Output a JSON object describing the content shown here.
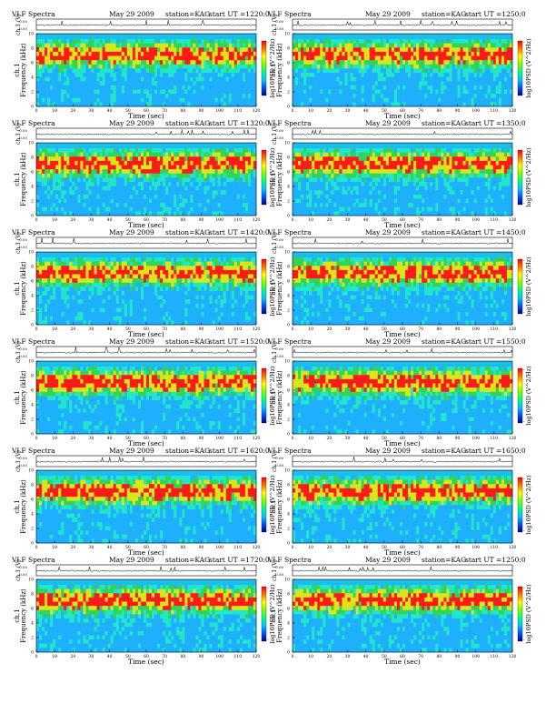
{
  "page": {
    "header_left": "VLF Spectra",
    "date": "May 29 2009",
    "station": "station=KAG",
    "start_label": "start  UT =",
    "top_axis_label": "ch.1 (V)",
    "top_axis_ticks": [
      "0.00",
      "0.50"
    ],
    "spectrogram_ylabel_line1": "ch.1",
    "spectrogram_ylabel_line2": "Frequency (kHz)",
    "xlabel": "Time (sec)",
    "colorbar_label": "log10PSD (V^2/Hz)",
    "colorbar_ticks": [
      "-",
      "-"
    ]
  },
  "chart_data": [
    {
      "type": "heatmap",
      "start_ut": "1220:0",
      "x_ticks": [
        0,
        10,
        20,
        30,
        40,
        50,
        60,
        70,
        80,
        90,
        100,
        110,
        120
      ],
      "xlim": [
        0,
        120
      ],
      "y_ticks": [
        0,
        2,
        4,
        6,
        8,
        10
      ],
      "ylim": [
        0,
        10
      ]
    },
    {
      "type": "heatmap",
      "start_ut": "1250:0",
      "x_ticks": [
        0,
        10,
        20,
        30,
        40,
        50,
        60,
        70,
        80,
        90,
        100,
        110,
        120
      ],
      "xlim": [
        0,
        120
      ],
      "y_ticks": [
        0,
        2,
        4,
        6,
        8,
        10
      ],
      "ylim": [
        0,
        10
      ]
    },
    {
      "type": "heatmap",
      "start_ut": "1320:0",
      "x_ticks": [
        0,
        10,
        20,
        30,
        40,
        50,
        60,
        70,
        80,
        90,
        100,
        110,
        120
      ],
      "xlim": [
        0,
        120
      ],
      "y_ticks": [
        0,
        2,
        4,
        6,
        8,
        10
      ],
      "ylim": [
        0,
        10
      ]
    },
    {
      "type": "heatmap",
      "start_ut": "1350:0",
      "x_ticks": [
        0,
        10,
        20,
        30,
        40,
        50,
        60,
        70,
        80,
        90,
        100,
        110,
        120
      ],
      "xlim": [
        0,
        120
      ],
      "y_ticks": [
        0,
        2,
        4,
        6,
        8,
        10
      ],
      "ylim": [
        0,
        10
      ]
    },
    {
      "type": "heatmap",
      "start_ut": "1420:0",
      "x_ticks": [
        0,
        10,
        20,
        30,
        40,
        50,
        60,
        70,
        80,
        90,
        100,
        110,
        120
      ],
      "xlim": [
        0,
        120
      ],
      "y_ticks": [
        0,
        2,
        4,
        6,
        8,
        10
      ],
      "ylim": [
        0,
        10
      ]
    },
    {
      "type": "heatmap",
      "start_ut": "1450:0",
      "x_ticks": [
        0,
        10,
        20,
        30,
        40,
        50,
        60,
        70,
        80,
        90,
        100,
        110,
        120
      ],
      "xlim": [
        0,
        120
      ],
      "y_ticks": [
        0,
        2,
        4,
        6,
        8,
        10
      ],
      "ylim": [
        0,
        10
      ]
    },
    {
      "type": "heatmap",
      "start_ut": "1520:0",
      "x_ticks": [
        0,
        10,
        20,
        30,
        40,
        50,
        60,
        70,
        80,
        90,
        100,
        110,
        120
      ],
      "xlim": [
        0,
        120
      ],
      "y_ticks": [
        0,
        2,
        4,
        6,
        8,
        10
      ],
      "ylim": [
        0,
        10
      ]
    },
    {
      "type": "heatmap",
      "start_ut": "1550:0",
      "x_ticks": [
        0,
        10,
        20,
        30,
        40,
        50,
        60,
        70,
        80,
        90,
        100,
        110,
        120
      ],
      "xlim": [
        0,
        120
      ],
      "y_ticks": [
        0,
        2,
        4,
        6,
        8,
        10
      ],
      "ylim": [
        0,
        10
      ]
    },
    {
      "type": "heatmap",
      "start_ut": "1620:0",
      "x_ticks": [
        0,
        10,
        20,
        30,
        40,
        50,
        60,
        70,
        80,
        90,
        100,
        110,
        120
      ],
      "xlim": [
        0,
        120
      ],
      "y_ticks": [
        0,
        2,
        4,
        6,
        8,
        10
      ],
      "ylim": [
        0,
        10
      ]
    },
    {
      "type": "heatmap",
      "start_ut": "1650:0",
      "x_ticks": [
        0,
        10,
        20,
        30,
        40,
        50,
        60,
        70,
        80,
        90,
        100,
        110,
        120
      ],
      "xlim": [
        0,
        120
      ],
      "y_ticks": [
        0,
        2,
        4,
        6,
        8,
        10
      ],
      "ylim": [
        0,
        10
      ]
    },
    {
      "type": "heatmap",
      "start_ut": "1720:0",
      "x_ticks": [
        0,
        10,
        20,
        30,
        40,
        50,
        60,
        70,
        80,
        90,
        100,
        110,
        120
      ],
      "xlim": [
        0,
        120
      ],
      "y_ticks": [
        0,
        2,
        4,
        6,
        8,
        10
      ],
      "ylim": [
        0,
        10
      ]
    },
    {
      "type": "heatmap",
      "start_ut": "1250:0",
      "x_ticks": [
        0,
        10,
        20,
        30,
        40,
        50,
        60,
        70,
        80,
        90,
        100,
        110,
        120
      ],
      "xlim": [
        0,
        120
      ],
      "y_ticks": [
        0,
        2,
        4,
        6,
        8,
        10
      ],
      "ylim": [
        0,
        10
      ]
    }
  ],
  "colors": {
    "low": "#1fb0ff",
    "mid_low": "#22e6c8",
    "mid": "#33d455",
    "mid_high": "#d8e61a",
    "high": "#ff1a1a",
    "cap": "#19bdf2",
    "colorbar": [
      "#ff0000",
      "#ff7a00",
      "#ffff00",
      "#7fff00",
      "#00ff7f",
      "#00c8ff",
      "#0050ff",
      "#000090"
    ]
  }
}
